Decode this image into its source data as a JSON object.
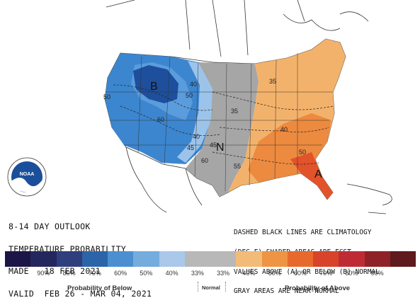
{
  "map": {
    "centers": {
      "below": "B",
      "above": "A",
      "normal": "N"
    },
    "isotherm_labels": [
      "50",
      "40",
      "50",
      "60",
      "45",
      "40",
      "35",
      "35",
      "60",
      "55",
      "40",
      "50",
      "45"
    ]
  },
  "outlook": {
    "line1": "8-14 DAY OUTLOOK",
    "line2": "TEMPERATURE PROBABILITY",
    "line3": "MADE   18 FEB 2021",
    "line4": "VALID  FEB 26 - MAR 04, 2021"
  },
  "note": {
    "line1": "DASHED BLACK LINES ARE CLIMATOLOGY",
    "line2": "(DEG F) SHADED AREAS ARE FCST",
    "line3": "VALUES ABOVE (A) OR BELOW (B) NORMAL",
    "line4": "GRAY AREAS ARE NEAR-NORMAL"
  },
  "logo_text": "NOAA",
  "legend": {
    "colors": [
      "#1b1646",
      "#24275e",
      "#2f3e7c",
      "#2b64a8",
      "#4b8fd0",
      "#74acde",
      "#a9c8ea",
      "#b8b8b8",
      "#b8b8b8",
      "#f2bb78",
      "#ee9442",
      "#e8692c",
      "#d9432a",
      "#bf2b35",
      "#8f2228",
      "#5e1a1c"
    ],
    "labels": [
      "90%",
      "80%",
      "70%",
      "60%",
      "50%",
      "40%",
      "33%",
      "33%",
      "40%",
      "50%",
      "60%",
      "70%",
      "80%",
      "90%"
    ],
    "below_caption": "Probability of Below",
    "normal_caption": "Normal",
    "above_caption": "Probability of Above"
  },
  "colors": {
    "below_strong": "#1e4f9c",
    "below_mid": "#3c86cf",
    "below_light": "#9cc4ea",
    "normal": "#a6a6a6",
    "above_light": "#f3b26b",
    "above_mid": "#ec8a40",
    "above_strong": "#e2532b"
  }
}
